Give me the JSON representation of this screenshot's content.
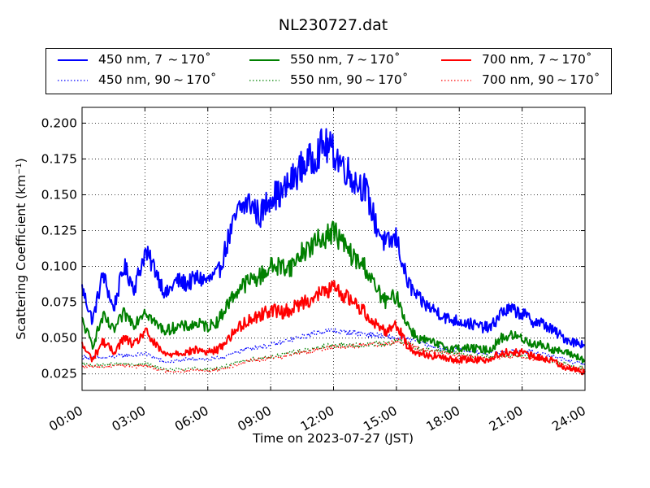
{
  "chart_data": {
    "type": "line",
    "title": "NL230727.dat",
    "xlabel": "Time on 2023-07-27 (JST)",
    "ylabel": "Scattering Coefficient (km⁻¹)",
    "xlim": [
      0,
      24
    ],
    "ylim": [
      0.0135,
      0.211
    ],
    "x_tick_labels": [
      "00:00",
      "03:00",
      "06:00",
      "09:00",
      "12:00",
      "15:00",
      "18:00",
      "21:00",
      "24:00"
    ],
    "x_ticks": [
      0,
      3,
      6,
      9,
      12,
      15,
      18,
      21,
      24
    ],
    "y_ticks": [
      0.025,
      0.05,
      0.075,
      0.1,
      0.125,
      0.15,
      0.175,
      0.2
    ],
    "y_tick_labels": [
      "0.025",
      "0.050",
      "0.075",
      "0.100",
      "0.125",
      "0.150",
      "0.175",
      "0.200"
    ],
    "grid": true,
    "legend_placement": "top (outside plot, 3 columns)",
    "x": [
      0,
      0.5,
      1,
      1.5,
      2,
      2.5,
      3,
      3.5,
      4,
      4.5,
      5,
      5.5,
      6,
      6.5,
      7,
      7.5,
      8,
      8.5,
      9,
      9.5,
      10,
      10.5,
      11,
      11.5,
      12,
      12.5,
      13,
      13.5,
      14,
      14.5,
      15,
      15.5,
      16,
      16.5,
      17,
      17.5,
      18,
      18.5,
      19,
      19.5,
      20,
      20.5,
      21,
      21.5,
      22,
      22.5,
      23,
      23.5,
      24
    ],
    "series": [
      {
        "name": "450 nm, 7  ~ 170˚",
        "color": "#0000ff",
        "style": "solid",
        "values": [
          0.085,
          0.062,
          0.095,
          0.07,
          0.1,
          0.085,
          0.11,
          0.098,
          0.08,
          0.09,
          0.088,
          0.092,
          0.09,
          0.095,
          0.12,
          0.14,
          0.145,
          0.135,
          0.15,
          0.15,
          0.16,
          0.17,
          0.175,
          0.185,
          0.18,
          0.17,
          0.16,
          0.155,
          0.13,
          0.115,
          0.12,
          0.09,
          0.078,
          0.072,
          0.068,
          0.063,
          0.062,
          0.06,
          0.058,
          0.057,
          0.068,
          0.07,
          0.067,
          0.062,
          0.06,
          0.055,
          0.05,
          0.047,
          0.046
        ]
      },
      {
        "name": "450 nm, 90 ~ 170˚",
        "color": "#0000ff",
        "style": "dotted",
        "values": [
          0.037,
          0.036,
          0.036,
          0.037,
          0.038,
          0.038,
          0.039,
          0.036,
          0.033,
          0.034,
          0.035,
          0.036,
          0.035,
          0.036,
          0.038,
          0.041,
          0.043,
          0.044,
          0.045,
          0.047,
          0.049,
          0.051,
          0.053,
          0.055,
          0.055,
          0.054,
          0.054,
          0.053,
          0.052,
          0.051,
          0.05,
          0.049,
          0.048,
          0.045,
          0.043,
          0.042,
          0.042,
          0.041,
          0.04,
          0.04,
          0.04,
          0.041,
          0.041,
          0.04,
          0.039,
          0.037,
          0.035,
          0.033,
          0.032
        ]
      },
      {
        "name": "550 nm, 7 ~ 170˚",
        "color": "#008000",
        "style": "solid",
        "values": [
          0.062,
          0.045,
          0.065,
          0.055,
          0.067,
          0.06,
          0.07,
          0.06,
          0.055,
          0.058,
          0.058,
          0.06,
          0.058,
          0.062,
          0.075,
          0.085,
          0.09,
          0.093,
          0.1,
          0.1,
          0.1,
          0.11,
          0.115,
          0.12,
          0.125,
          0.115,
          0.105,
          0.1,
          0.085,
          0.075,
          0.08,
          0.06,
          0.05,
          0.048,
          0.045,
          0.043,
          0.043,
          0.043,
          0.042,
          0.042,
          0.05,
          0.052,
          0.05,
          0.046,
          0.045,
          0.042,
          0.04,
          0.038,
          0.034
        ]
      },
      {
        "name": "550 nm, 90 ~ 170˚",
        "color": "#008000",
        "style": "dotted",
        "values": [
          0.032,
          0.031,
          0.031,
          0.032,
          0.032,
          0.031,
          0.032,
          0.03,
          0.028,
          0.028,
          0.028,
          0.029,
          0.028,
          0.029,
          0.031,
          0.033,
          0.035,
          0.036,
          0.037,
          0.038,
          0.04,
          0.041,
          0.042,
          0.044,
          0.045,
          0.045,
          0.045,
          0.045,
          0.046,
          0.046,
          0.048,
          0.046,
          0.043,
          0.042,
          0.041,
          0.04,
          0.039,
          0.038,
          0.037,
          0.037,
          0.038,
          0.038,
          0.038,
          0.037,
          0.036,
          0.034,
          0.032,
          0.03,
          0.029
        ]
      },
      {
        "name": "700 nm, 7 ~ 170˚",
        "color": "#ff0000",
        "style": "solid",
        "values": [
          0.045,
          0.035,
          0.048,
          0.04,
          0.05,
          0.045,
          0.055,
          0.045,
          0.038,
          0.04,
          0.04,
          0.042,
          0.04,
          0.042,
          0.05,
          0.058,
          0.063,
          0.066,
          0.07,
          0.068,
          0.07,
          0.075,
          0.078,
          0.082,
          0.085,
          0.08,
          0.075,
          0.068,
          0.06,
          0.055,
          0.06,
          0.045,
          0.04,
          0.038,
          0.037,
          0.035,
          0.035,
          0.035,
          0.035,
          0.035,
          0.04,
          0.04,
          0.04,
          0.037,
          0.036,
          0.034,
          0.03,
          0.028,
          0.026
        ]
      },
      {
        "name": "700 nm, 90 ~ 170˚",
        "color": "#ff0000",
        "style": "dotted",
        "values": [
          0.03,
          0.03,
          0.03,
          0.031,
          0.031,
          0.03,
          0.031,
          0.029,
          0.027,
          0.027,
          0.027,
          0.028,
          0.027,
          0.028,
          0.03,
          0.032,
          0.034,
          0.035,
          0.036,
          0.037,
          0.039,
          0.04,
          0.041,
          0.043,
          0.044,
          0.044,
          0.044,
          0.045,
          0.046,
          0.046,
          0.048,
          0.046,
          0.043,
          0.041,
          0.04,
          0.039,
          0.038,
          0.037,
          0.036,
          0.036,
          0.037,
          0.037,
          0.037,
          0.036,
          0.035,
          0.033,
          0.031,
          0.029,
          0.028
        ]
      }
    ]
  }
}
